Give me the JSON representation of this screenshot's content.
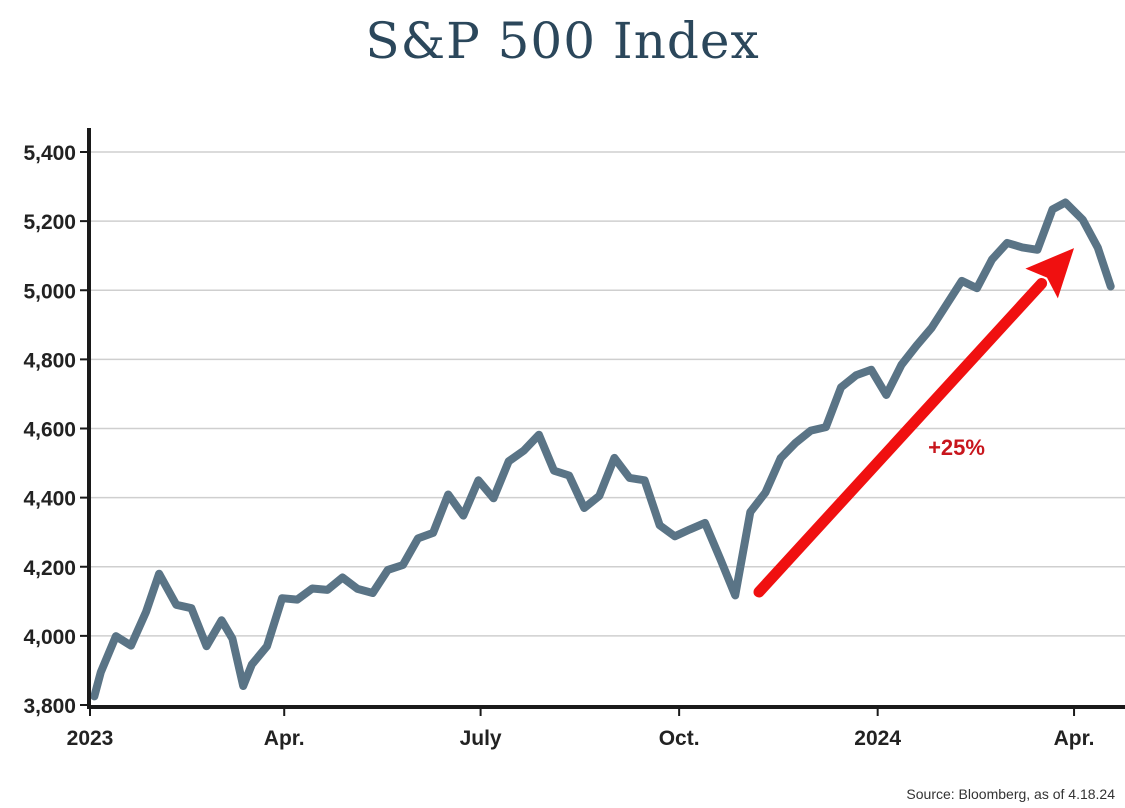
{
  "chart_data": {
    "type": "line",
    "title": "S&P 500 Index",
    "source": "Source: Bloomberg, as of 4.18.24",
    "ylim": [
      3800,
      5400
    ],
    "yticks": [
      3800,
      4000,
      4200,
      4400,
      4600,
      4800,
      5000,
      5200,
      5400
    ],
    "ytick_labels": [
      "3,800",
      "4,000",
      "4,200",
      "4,400",
      "4,600",
      "4,800",
      "5,000",
      "5,200",
      "5,400"
    ],
    "xlim": [
      "2023-01-01",
      "2024-04-20"
    ],
    "xticks": [
      "2023-01-01",
      "2023-04-01",
      "2023-07-01",
      "2023-10-01",
      "2024-01-01",
      "2024-04-01"
    ],
    "xtick_labels": [
      "2023",
      "Apr.",
      "July",
      "Oct.",
      "2024",
      "Apr."
    ],
    "grid": "horizontal",
    "colors": {
      "line": "#5a7486",
      "arrow": "#f01010",
      "annotation": "#c8161d",
      "title": "#2b475b"
    },
    "series": [
      {
        "x": [
          "2023-01-03",
          "2023-01-06",
          "2023-01-13",
          "2023-01-20",
          "2023-01-27",
          "2023-02-02",
          "2023-02-10",
          "2023-02-17",
          "2023-02-24",
          "2023-03-03",
          "2023-03-08",
          "2023-03-13",
          "2023-03-17",
          "2023-03-24",
          "2023-03-31",
          "2023-04-07",
          "2023-04-14",
          "2023-04-21",
          "2023-04-28",
          "2023-05-05",
          "2023-05-12",
          "2023-05-19",
          "2023-05-26",
          "2023-06-02",
          "2023-06-09",
          "2023-06-16",
          "2023-06-23",
          "2023-06-30",
          "2023-07-07",
          "2023-07-14",
          "2023-07-21",
          "2023-07-28",
          "2023-08-04",
          "2023-08-11",
          "2023-08-18",
          "2023-08-25",
          "2023-09-01",
          "2023-09-08",
          "2023-09-15",
          "2023-09-22",
          "2023-09-29",
          "2023-10-06",
          "2023-10-13",
          "2023-10-20",
          "2023-10-27",
          "2023-11-03",
          "2023-11-10",
          "2023-11-17",
          "2023-11-24",
          "2023-12-01",
          "2023-12-08",
          "2023-12-15",
          "2023-12-22",
          "2023-12-29",
          "2024-01-05",
          "2024-01-12",
          "2024-01-19",
          "2024-01-26",
          "2024-02-02",
          "2024-02-09",
          "2024-02-16",
          "2024-02-23",
          "2024-03-01",
          "2024-03-08",
          "2024-03-15",
          "2024-03-22",
          "2024-03-28",
          "2024-04-05",
          "2024-04-12",
          "2024-04-18"
        ],
        "values": [
          3825,
          3895,
          3999,
          3972,
          4070,
          4180,
          4090,
          4080,
          3970,
          4045,
          3992,
          3855,
          3917,
          3970,
          4109,
          4105,
          4137,
          4133,
          4169,
          4136,
          4124,
          4191,
          4205,
          4282,
          4298,
          4409,
          4348,
          4450,
          4398,
          4505,
          4536,
          4582,
          4478,
          4464,
          4370,
          4405,
          4515,
          4457,
          4450,
          4320,
          4288,
          4308,
          4327,
          4224,
          4117,
          4358,
          4415,
          4514,
          4559,
          4594,
          4604,
          4719,
          4754,
          4770,
          4697,
          4784,
          4840,
          4891,
          4959,
          5027,
          5006,
          5089,
          5137,
          5124,
          5117,
          5234,
          5254,
          5204,
          5123,
          5011
        ]
      }
    ],
    "annotations": [
      {
        "type": "arrow",
        "label": "+25%",
        "from": {
          "x": "2023-11-07",
          "y": 4127
        },
        "to": {
          "x": "2024-04-01",
          "y": 5122
        }
      }
    ]
  }
}
